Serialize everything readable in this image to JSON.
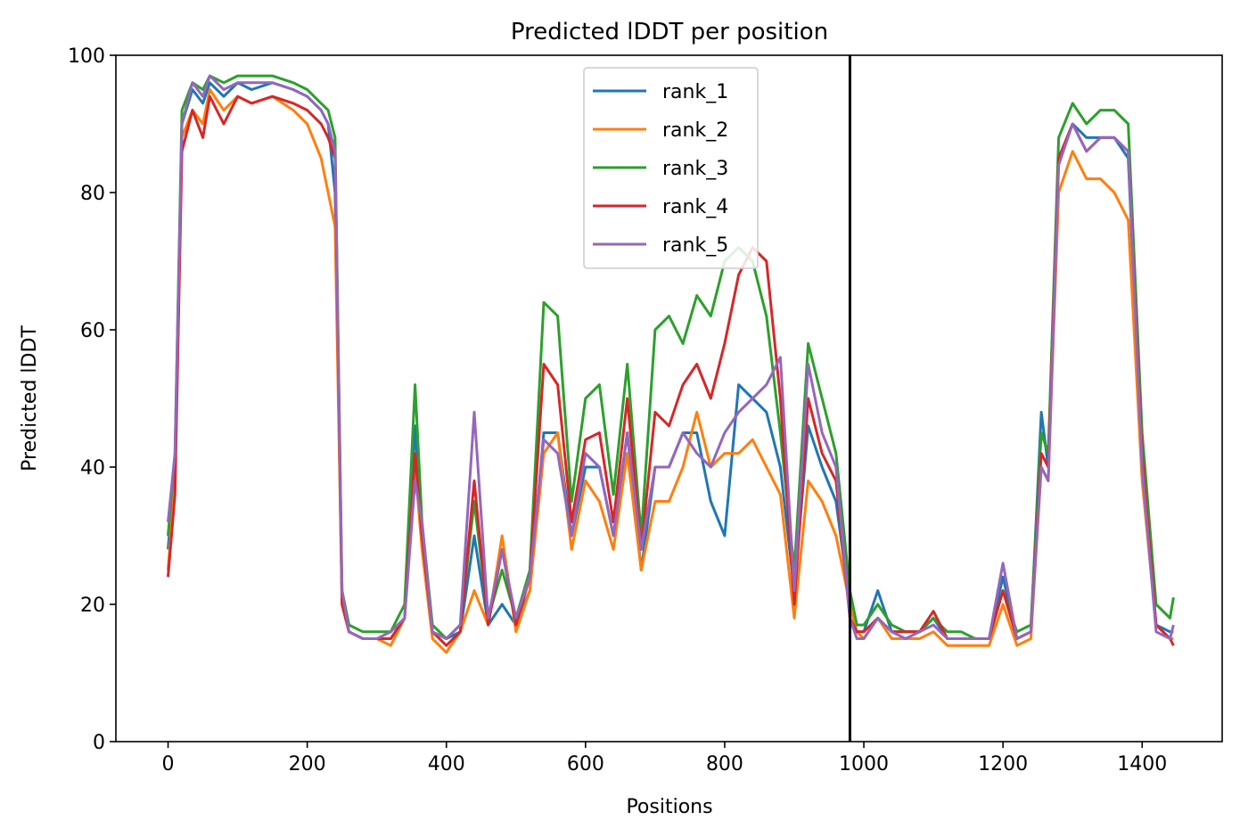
{
  "chart_data": {
    "type": "line",
    "title": "Predicted lDDT per position",
    "xlabel": "Positions",
    "ylabel": "Predicted lDDT",
    "xlim": [
      -75,
      1515
    ],
    "ylim": [
      0,
      100
    ],
    "xticks": [
      0,
      200,
      400,
      600,
      800,
      1000,
      1200,
      1400
    ],
    "yticks": [
      0,
      20,
      40,
      60,
      80,
      100
    ],
    "grid": false,
    "legend_position": "top-center",
    "vline_x": 980,
    "vline_color": "#000000",
    "series": [
      {
        "name": "rank_1",
        "color": "#1f77b4",
        "x": [
          0,
          10,
          20,
          35,
          50,
          60,
          80,
          100,
          120,
          150,
          180,
          200,
          220,
          230,
          240,
          250,
          260,
          280,
          300,
          320,
          340,
          355,
          365,
          380,
          400,
          420,
          440,
          460,
          480,
          500,
          520,
          540,
          560,
          580,
          600,
          620,
          640,
          660,
          680,
          700,
          720,
          740,
          760,
          780,
          800,
          820,
          840,
          860,
          880,
          900,
          920,
          940,
          960,
          980,
          990,
          1000,
          1020,
          1040,
          1060,
          1080,
          1100,
          1120,
          1140,
          1160,
          1180,
          1200,
          1220,
          1240,
          1255,
          1265,
          1280,
          1300,
          1320,
          1340,
          1360,
          1380,
          1400,
          1420,
          1440,
          1445
        ],
        "y": [
          28,
          40,
          90,
          95,
          93,
          96,
          94,
          96,
          95,
          96,
          95,
          94,
          92,
          90,
          80,
          20,
          16,
          15,
          15,
          15,
          18,
          46,
          30,
          16,
          15,
          16,
          30,
          17,
          20,
          17,
          22,
          45,
          45,
          30,
          40,
          40,
          30,
          45,
          25,
          40,
          40,
          45,
          45,
          35,
          30,
          52,
          50,
          48,
          40,
          22,
          46,
          40,
          35,
          20,
          16,
          16,
          22,
          16,
          16,
          16,
          18,
          15,
          15,
          15,
          15,
          24,
          15,
          16,
          48,
          40,
          85,
          90,
          88,
          88,
          88,
          85,
          40,
          17,
          16,
          16
        ]
      },
      {
        "name": "rank_2",
        "color": "#ff7f0e",
        "x": [
          0,
          10,
          20,
          35,
          50,
          60,
          80,
          100,
          120,
          150,
          180,
          200,
          220,
          230,
          240,
          250,
          260,
          280,
          300,
          320,
          340,
          355,
          365,
          380,
          400,
          420,
          440,
          460,
          480,
          500,
          520,
          540,
          560,
          580,
          600,
          620,
          640,
          660,
          680,
          700,
          720,
          740,
          760,
          780,
          800,
          820,
          840,
          860,
          880,
          900,
          920,
          940,
          960,
          980,
          990,
          1000,
          1020,
          1040,
          1060,
          1080,
          1100,
          1120,
          1140,
          1160,
          1180,
          1200,
          1220,
          1240,
          1255,
          1265,
          1280,
          1300,
          1320,
          1340,
          1360,
          1380,
          1400,
          1420,
          1440,
          1445
        ],
        "y": [
          25,
          38,
          88,
          92,
          90,
          95,
          92,
          94,
          93,
          94,
          92,
          90,
          85,
          80,
          75,
          20,
          16,
          15,
          15,
          14,
          18,
          40,
          28,
          15,
          13,
          16,
          22,
          17,
          30,
          16,
          22,
          42,
          45,
          28,
          38,
          35,
          28,
          42,
          25,
          35,
          35,
          40,
          48,
          40,
          42,
          42,
          44,
          40,
          36,
          18,
          38,
          35,
          30,
          20,
          16,
          15,
          18,
          15,
          15,
          15,
          16,
          14,
          14,
          14,
          14,
          20,
          14,
          15,
          40,
          38,
          80,
          86,
          82,
          82,
          80,
          76,
          38,
          17,
          15,
          15
        ]
      },
      {
        "name": "rank_3",
        "color": "#2ca02c",
        "x": [
          0,
          10,
          20,
          35,
          50,
          60,
          80,
          100,
          120,
          150,
          180,
          200,
          220,
          230,
          240,
          250,
          260,
          280,
          300,
          320,
          340,
          355,
          365,
          380,
          400,
          420,
          440,
          460,
          480,
          500,
          520,
          540,
          560,
          580,
          600,
          620,
          640,
          660,
          680,
          700,
          720,
          740,
          760,
          780,
          800,
          820,
          840,
          860,
          880,
          900,
          920,
          940,
          960,
          980,
          990,
          1000,
          1020,
          1040,
          1060,
          1080,
          1100,
          1120,
          1140,
          1160,
          1180,
          1200,
          1220,
          1240,
          1255,
          1265,
          1280,
          1300,
          1320,
          1340,
          1360,
          1380,
          1400,
          1420,
          1440,
          1445
        ],
        "y": [
          30,
          42,
          92,
          96,
          95,
          97,
          96,
          97,
          97,
          97,
          96,
          95,
          93,
          92,
          88,
          22,
          17,
          16,
          16,
          16,
          20,
          52,
          32,
          17,
          15,
          17,
          35,
          18,
          25,
          18,
          25,
          64,
          62,
          35,
          50,
          52,
          36,
          55,
          30,
          60,
          62,
          58,
          65,
          62,
          70,
          72,
          70,
          62,
          45,
          25,
          58,
          50,
          42,
          22,
          17,
          17,
          20,
          17,
          16,
          16,
          18,
          16,
          16,
          15,
          15,
          22,
          16,
          17,
          45,
          42,
          88,
          93,
          90,
          92,
          92,
          90,
          45,
          20,
          18,
          21
        ]
      },
      {
        "name": "rank_4",
        "color": "#d62728",
        "x": [
          0,
          10,
          20,
          35,
          50,
          60,
          80,
          100,
          120,
          150,
          180,
          200,
          220,
          230,
          240,
          250,
          260,
          280,
          300,
          320,
          340,
          355,
          365,
          380,
          400,
          420,
          440,
          460,
          480,
          500,
          520,
          540,
          560,
          580,
          600,
          620,
          640,
          660,
          680,
          700,
          720,
          740,
          760,
          780,
          800,
          820,
          840,
          860,
          880,
          900,
          920,
          940,
          960,
          980,
          990,
          1000,
          1020,
          1040,
          1060,
          1080,
          1100,
          1120,
          1140,
          1160,
          1180,
          1200,
          1220,
          1240,
          1255,
          1265,
          1280,
          1300,
          1320,
          1340,
          1360,
          1380,
          1400,
          1420,
          1440,
          1445
        ],
        "y": [
          24,
          36,
          86,
          92,
          88,
          94,
          90,
          94,
          93,
          94,
          93,
          92,
          90,
          88,
          85,
          20,
          16,
          15,
          15,
          15,
          18,
          42,
          30,
          16,
          14,
          16,
          38,
          17,
          28,
          17,
          24,
          55,
          52,
          32,
          44,
          45,
          32,
          50,
          28,
          48,
          46,
          52,
          55,
          50,
          58,
          68,
          72,
          70,
          50,
          20,
          50,
          42,
          38,
          18,
          16,
          16,
          18,
          16,
          16,
          16,
          19,
          15,
          15,
          15,
          15,
          22,
          15,
          16,
          42,
          40,
          85,
          90,
          86,
          88,
          88,
          86,
          42,
          17,
          15,
          14
        ]
      },
      {
        "name": "rank_5",
        "color": "#9467bd",
        "x": [
          0,
          10,
          20,
          35,
          50,
          60,
          80,
          100,
          120,
          150,
          180,
          200,
          220,
          230,
          240,
          250,
          260,
          280,
          300,
          320,
          340,
          355,
          365,
          380,
          400,
          420,
          440,
          460,
          480,
          500,
          520,
          540,
          560,
          580,
          600,
          620,
          640,
          660,
          680,
          700,
          720,
          740,
          760,
          780,
          800,
          820,
          840,
          860,
          880,
          900,
          920,
          940,
          960,
          980,
          990,
          1000,
          1020,
          1040,
          1060,
          1080,
          1100,
          1120,
          1140,
          1160,
          1180,
          1200,
          1220,
          1240,
          1255,
          1265,
          1280,
          1300,
          1320,
          1340,
          1360,
          1380,
          1400,
          1420,
          1440,
          1445
        ],
        "y": [
          32,
          42,
          90,
          96,
          94,
          97,
          95,
          96,
          96,
          96,
          95,
          94,
          92,
          90,
          86,
          22,
          16,
          15,
          15,
          16,
          18,
          38,
          32,
          16,
          15,
          17,
          48,
          18,
          28,
          18,
          24,
          44,
          42,
          30,
          42,
          40,
          30,
          45,
          28,
          40,
          40,
          45,
          42,
          40,
          45,
          48,
          50,
          52,
          56,
          22,
          55,
          45,
          40,
          18,
          15,
          15,
          18,
          16,
          15,
          16,
          17,
          15,
          15,
          15,
          15,
          26,
          15,
          16,
          40,
          38,
          84,
          90,
          86,
          88,
          88,
          86,
          40,
          16,
          15,
          17
        ]
      }
    ]
  }
}
